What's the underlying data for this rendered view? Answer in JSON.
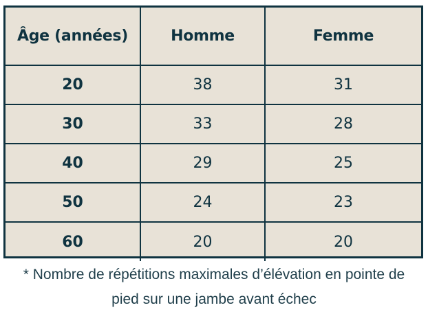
{
  "table": {
    "headers": [
      "Âge (années)",
      "Homme",
      "Femme"
    ],
    "rows": [
      {
        "age": "20",
        "homme": "38",
        "femme": "31"
      },
      {
        "age": "30",
        "homme": "33",
        "femme": "28"
      },
      {
        "age": "40",
        "homme": "29",
        "femme": "25"
      },
      {
        "age": "50",
        "homme": "24",
        "femme": "23"
      },
      {
        "age": "60",
        "homme": "20",
        "femme": "20"
      }
    ]
  },
  "footnote": {
    "line1": "* Nombre de répétitions maximales d’élévation en pointe de",
    "line2": "pied sur une jambe avant échec"
  },
  "colors": {
    "border": "#0f3340",
    "cell_background": "#e8e2d7",
    "text": "#0f3340"
  }
}
